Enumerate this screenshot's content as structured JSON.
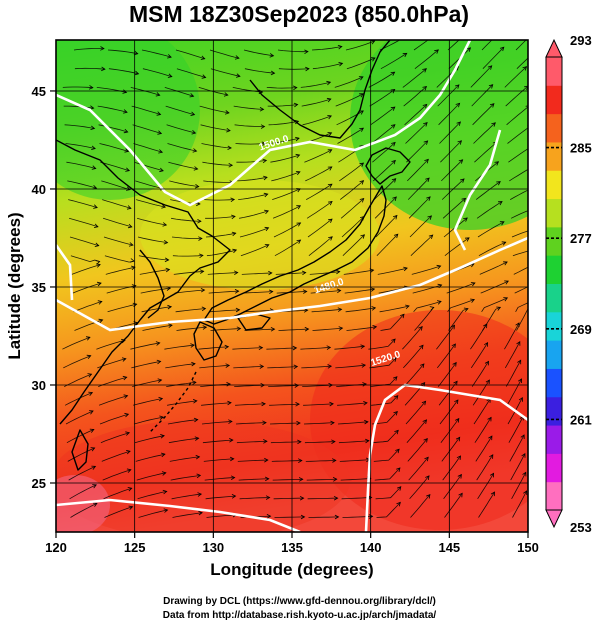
{
  "title": "MSM 18Z30Sep2023 (850.0hPa)",
  "x_axis": {
    "label": "Longitude (degrees)",
    "min": 120,
    "max": 150,
    "ticks": [
      120,
      125,
      130,
      135,
      140,
      145,
      150
    ]
  },
  "y_axis": {
    "label": "Latitude  (degrees)",
    "min": 22.5,
    "max": 47.6,
    "ticks": [
      25,
      30,
      35,
      40,
      45
    ]
  },
  "colorbar": {
    "min": 253,
    "max": 293,
    "tick_labels": [
      "293",
      "285",
      "277",
      "269",
      "261",
      "253"
    ],
    "tick_values": [
      293,
      285,
      277,
      269,
      261,
      253
    ],
    "colors": [
      "#ff6fbf",
      "#e21be0",
      "#9a1be8",
      "#3b1fe0",
      "#1a52ff",
      "#18a4f0",
      "#19d4d8",
      "#19d28a",
      "#1ed132",
      "#5fd21f",
      "#b6e01f",
      "#f2e51d",
      "#f7a31d",
      "#f5621d",
      "#f22a1d",
      "#ff5a6a"
    ]
  },
  "contours": [
    {
      "label": "1500.0",
      "lon": 133.9,
      "lat": 42.2
    },
    {
      "label": "1480.0",
      "lon": 137.4,
      "lat": 34.9
    },
    {
      "label": "1520.0",
      "lon": 141.0,
      "lat": 31.2
    }
  ],
  "credits": {
    "line1": "Drawing by DCL (https://www.gfd-dennou.org/library/dcl/)",
    "line2": "Data from http://database.rish.kyoto-u.ac.jp/arch/jmadata/"
  }
}
